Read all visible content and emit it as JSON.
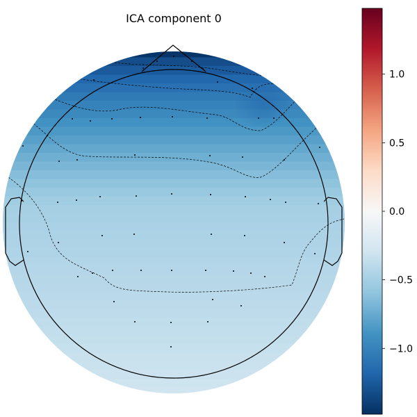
{
  "chart_data": {
    "type": "heatmap",
    "title": "ICA component 0",
    "colormap": "RdBu_r",
    "color_stops": [
      "#053061",
      "#2166ac",
      "#4393c3",
      "#92c5de",
      "#d1e5f0",
      "#f7f7f7",
      "#fddbc7",
      "#f4a582",
      "#d6604d",
      "#b2182b",
      "#67001f"
    ],
    "colorbar": {
      "vmin": -1.48,
      "vmax": 1.48,
      "ticks": [
        -1.0,
        -0.5,
        0.0,
        0.5,
        1.0
      ],
      "tick_labels": [
        "−1.0",
        "−0.5",
        "0.0",
        "0.5",
        "1.0"
      ]
    },
    "value_field": {
      "frontal_minimum": -1.45,
      "right_frontal_minimum": -1.15,
      "central_value": -0.5,
      "posterior_value": -0.3
    },
    "contour_levels": [
      -1.3,
      -1.05,
      -0.8,
      -0.6,
      -0.4
    ],
    "sensor_count": 59,
    "head_outline": true,
    "nose": true,
    "ears": true
  }
}
